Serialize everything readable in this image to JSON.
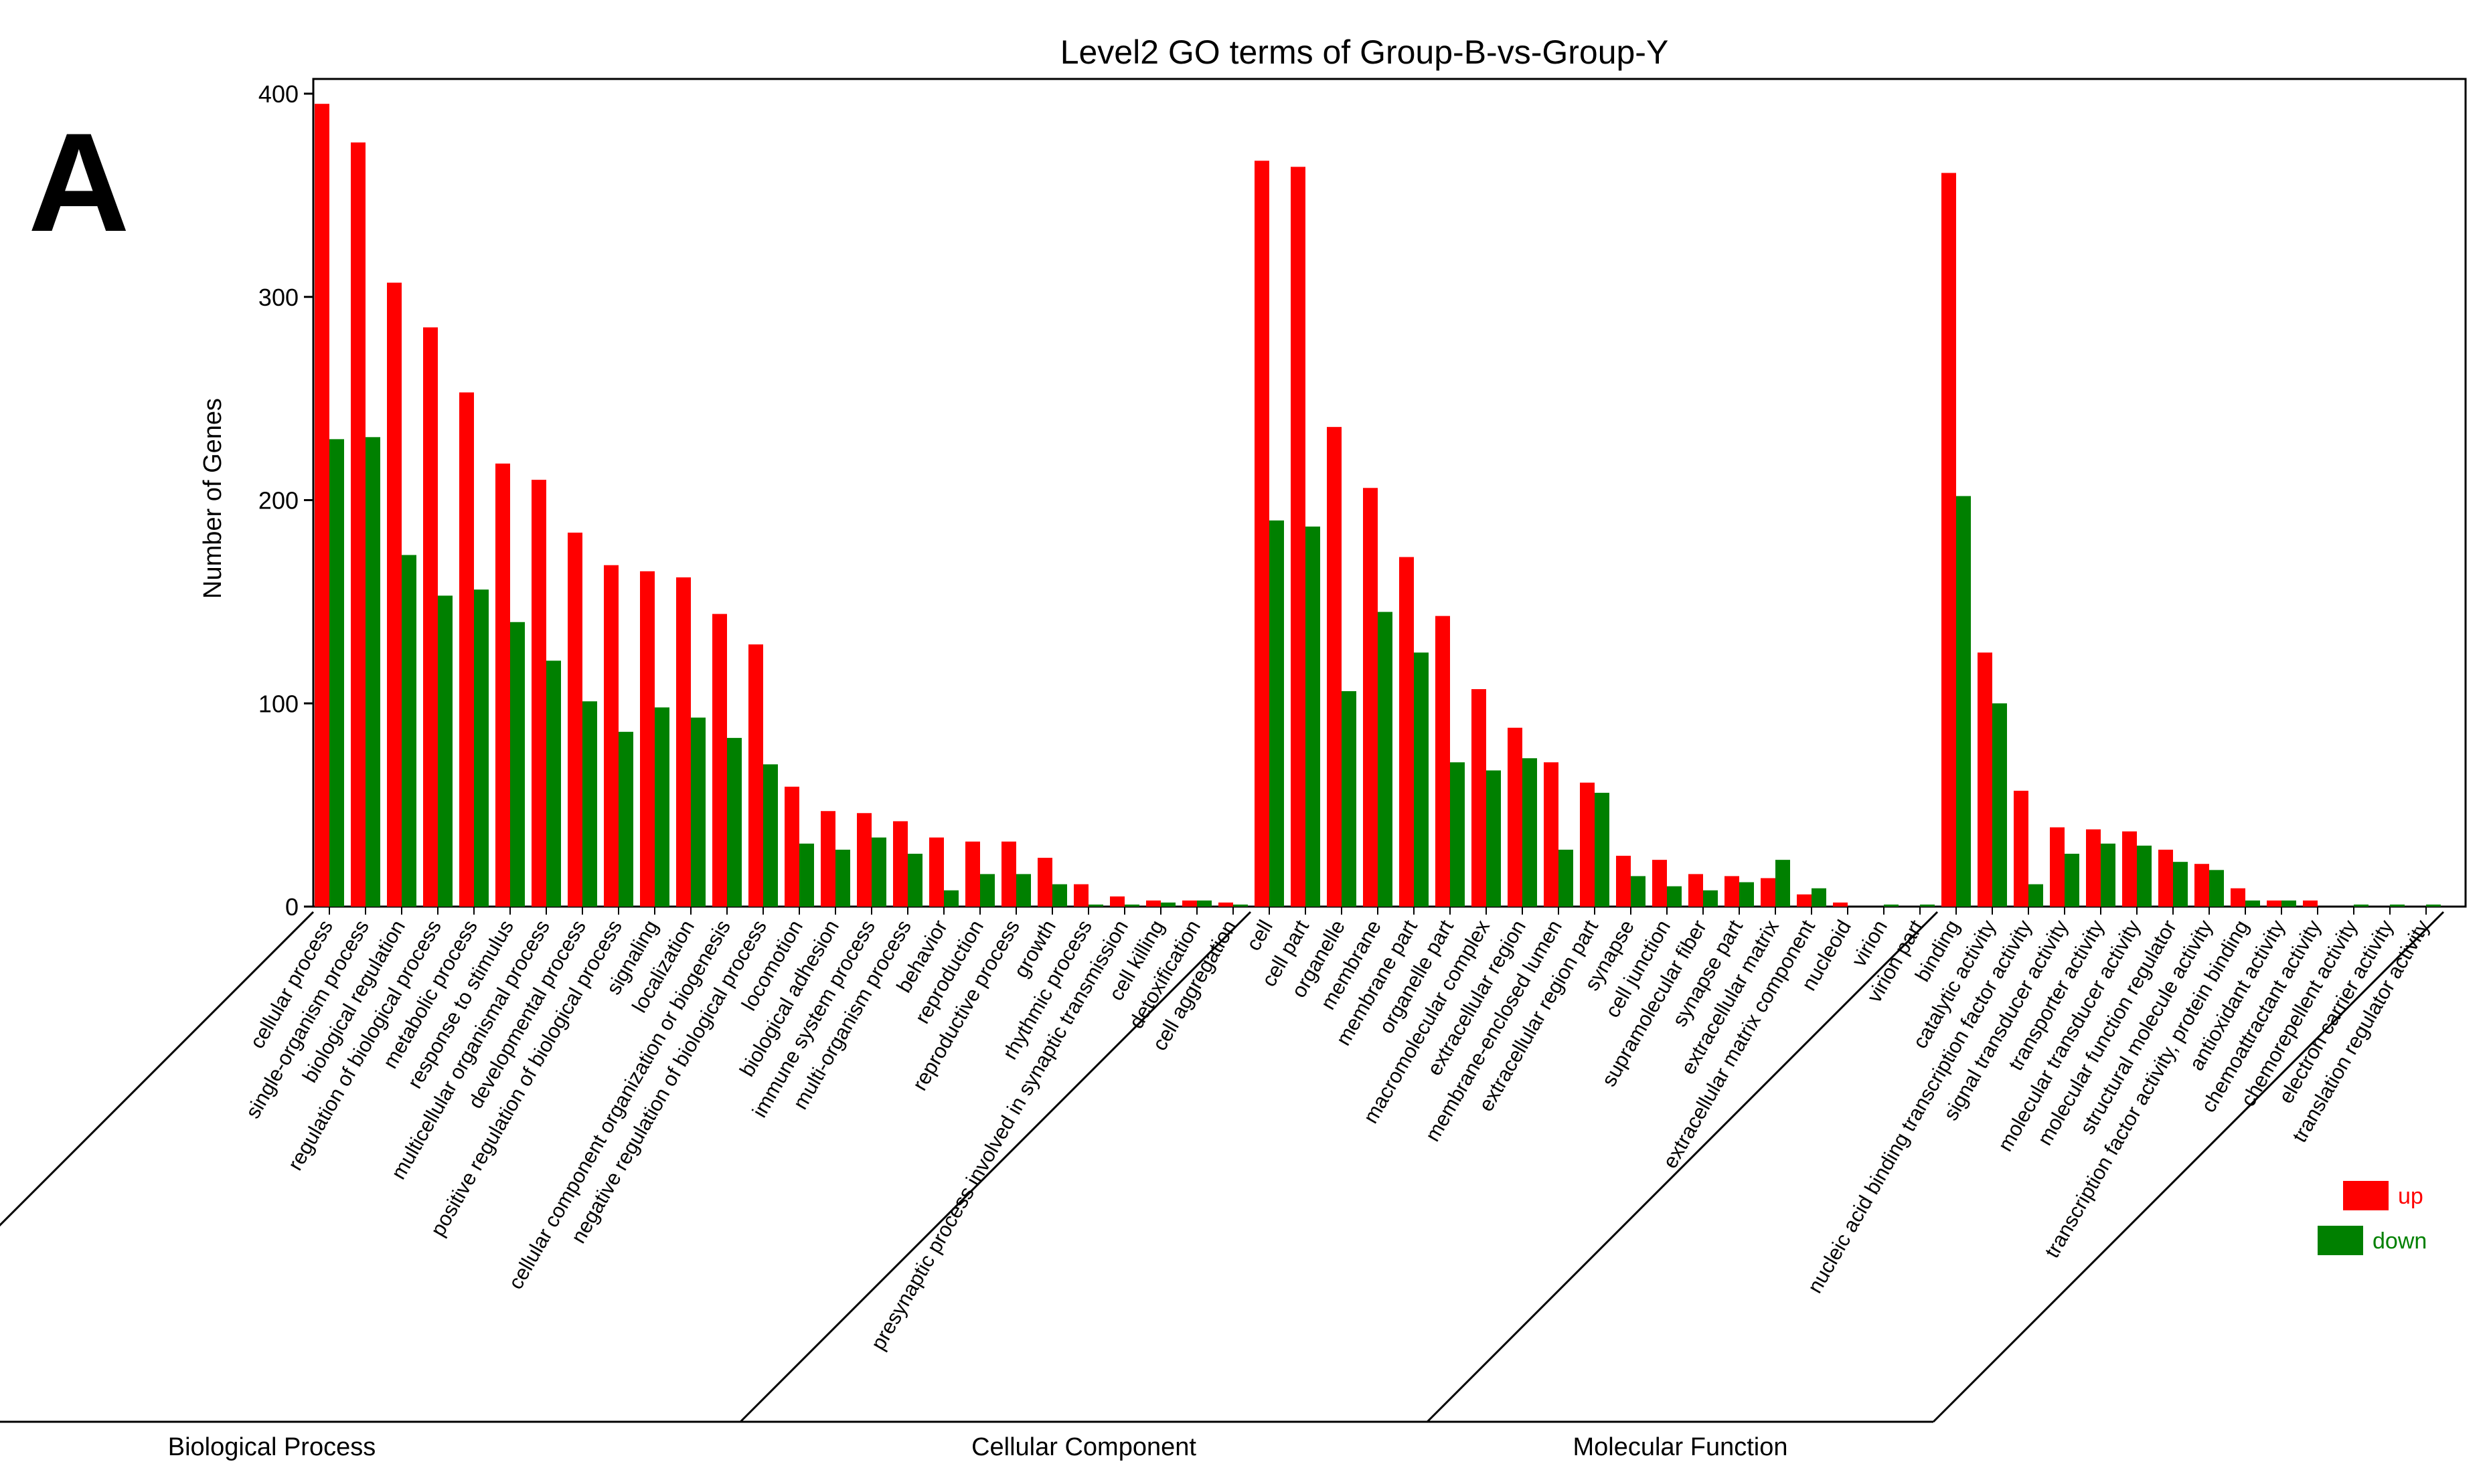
{
  "panel_label": "A",
  "chart_data": {
    "type": "bar",
    "title": "Level2 GO terms of Group-B-vs-Group-Y",
    "xlabel": "",
    "ylabel": "Number of Genes",
    "ylim": [
      0,
      410
    ],
    "yticks": [
      0,
      100,
      200,
      300,
      400
    ],
    "grid": false,
    "legend_position": "right",
    "colors": {
      "up": "#ff0000",
      "down": "#008000",
      "axis": "#000000"
    },
    "series": [
      {
        "name": "up",
        "color": "#ff0000"
      },
      {
        "name": "down",
        "color": "#008000"
      }
    ],
    "groups": [
      {
        "name": "Biological Process",
        "categories": [
          "cellular process",
          "single-organism process",
          "biological regulation",
          "regulation of biological process",
          "metabolic process",
          "response to stimulus",
          "multicellular organismal process",
          "developmental process",
          "positive regulation of biological process",
          "signaling",
          "localization",
          "cellular component organization or biogenesis",
          "negative regulation of biological process",
          "locomotion",
          "biological adhesion",
          "immune system process",
          "multi-organism process",
          "behavior",
          "reproduction",
          "reproductive process",
          "growth",
          "rhythmic process",
          "presynaptic process involved in synaptic transmission",
          "cell killing",
          "detoxification",
          "cell aggregation"
        ],
        "up": [
          395,
          376,
          307,
          285,
          253,
          218,
          210,
          184,
          168,
          165,
          162,
          144,
          129,
          59,
          47,
          46,
          42,
          34,
          32,
          32,
          24,
          11,
          5,
          3,
          3,
          2
        ],
        "down": [
          230,
          231,
          173,
          153,
          156,
          140,
          121,
          101,
          86,
          98,
          93,
          83,
          70,
          31,
          28,
          34,
          26,
          8,
          16,
          16,
          11,
          1,
          1,
          2,
          3,
          1
        ]
      },
      {
        "name": "Cellular Component",
        "categories": [
          "cell",
          "cell part",
          "organelle",
          "membrane",
          "membrane part",
          "organelle part",
          "macromolecular complex",
          "extracellular region",
          "membrane-enclosed lumen",
          "extracellular region part",
          "synapse",
          "cell junction",
          "supramolecular fiber",
          "synapse part",
          "extracellular matrix",
          "extracellular matrix component",
          "nucleoid",
          "virion",
          "virion part"
        ],
        "up": [
          367,
          364,
          236,
          206,
          172,
          143,
          107,
          88,
          71,
          61,
          25,
          23,
          16,
          15,
          14,
          6,
          2,
          0,
          0
        ],
        "down": [
          190,
          187,
          106,
          145,
          125,
          71,
          67,
          73,
          28,
          56,
          15,
          10,
          8,
          12,
          23,
          9,
          0,
          1,
          1
        ]
      },
      {
        "name": "Molecular Function",
        "categories": [
          "binding",
          "catalytic activity",
          "nucleic acid binding transcription factor activity",
          "signal transducer activity",
          "transporter activity",
          "molecular transducer activity",
          "molecular function regulator",
          "structural molecule activity",
          "transcription factor activity, protein binding",
          "antioxidant activity",
          "chemoattractant activity",
          "chemorepellent activity",
          "electron carrier activity",
          "translation regulator activity"
        ],
        "up": [
          361,
          125,
          57,
          39,
          38,
          37,
          28,
          21,
          9,
          3,
          3,
          0,
          0,
          0
        ],
        "down": [
          202,
          100,
          11,
          26,
          31,
          30,
          22,
          18,
          3,
          3,
          0,
          1,
          1,
          1
        ]
      }
    ]
  }
}
